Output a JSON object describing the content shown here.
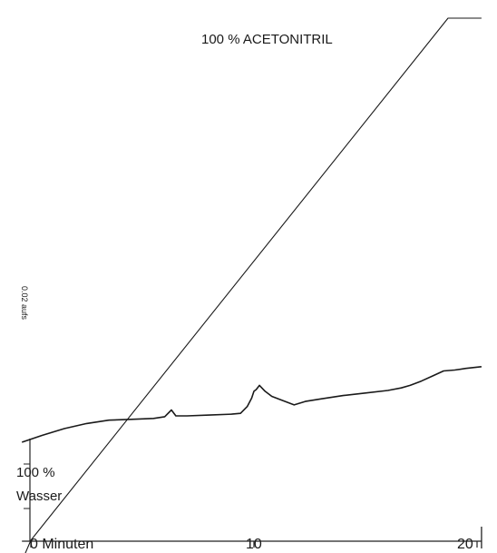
{
  "chart_data": {
    "type": "line",
    "title": "",
    "gradient_top_label": "100 % ACETONITRIL",
    "gradient_bottom_label_line1": "100 %",
    "gradient_bottom_label_line2": "Wasser",
    "absorbance_scale_label": "0.02 aufs",
    "xlabel": "",
    "x_tick_labels": [
      "0 Minuten",
      "10",
      "20"
    ],
    "x_ticks": [
      0,
      10,
      20
    ],
    "xlim": [
      -0.4,
      20.2
    ],
    "grid": false,
    "legend": "none",
    "series": [
      {
        "name": "",
        "role": "gradient",
        "unit": "% Acetonitril",
        "x": [
          0,
          18.7,
          20.2
        ],
        "y": [
          0,
          100,
          100
        ]
      },
      {
        "name": "",
        "role": "detector",
        "unit": "relative absorbance",
        "x": [
          -0.4,
          0.5,
          1.5,
          2.5,
          3.5,
          4.5,
          5.5,
          6.0,
          6.3,
          6.5,
          7.0,
          8.0,
          9.0,
          9.4,
          9.7,
          9.9,
          10.0,
          10.1,
          10.25,
          10.5,
          10.8,
          11.2,
          11.8,
          12.3,
          13.0,
          14.0,
          15.0,
          16.0,
          16.6,
          17.0,
          17.5,
          18.0,
          18.5,
          19.0,
          19.5,
          20.2
        ],
        "y": [
          0.0,
          0.4,
          0.8,
          1.1,
          1.3,
          1.35,
          1.4,
          1.5,
          1.9,
          1.55,
          1.55,
          1.6,
          1.65,
          1.7,
          2.1,
          2.6,
          3.0,
          3.1,
          3.35,
          3.0,
          2.7,
          2.5,
          2.2,
          2.4,
          2.55,
          2.75,
          2.9,
          3.05,
          3.2,
          3.35,
          3.6,
          3.9,
          4.2,
          4.25,
          4.35,
          4.45
        ]
      }
    ]
  }
}
